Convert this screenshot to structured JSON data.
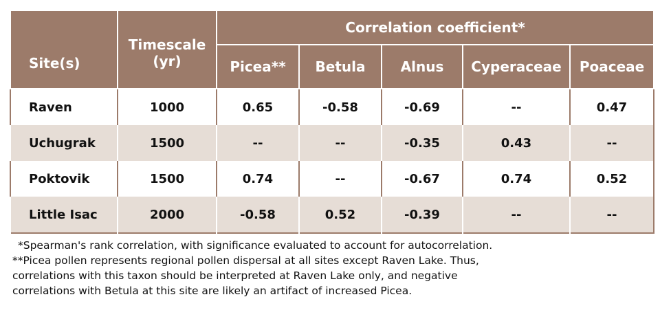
{
  "table": {
    "headers": {
      "site": "Site(s)",
      "timescale": "Timescale (yr)",
      "group": "Correlation coefficient*",
      "taxa": [
        "Picea**",
        "Betula",
        "Alnus",
        "Cyperaceae",
        "Poaceae"
      ]
    },
    "rows": [
      {
        "site": "Raven",
        "timescale": "1000",
        "values": [
          "0.65",
          "-0.58",
          "-0.69",
          "--",
          "0.47"
        ]
      },
      {
        "site": "Uchugrak",
        "timescale": "1500",
        "values": [
          "--",
          "--",
          "-0.35",
          "0.43",
          "--"
        ]
      },
      {
        "site": "Poktovik",
        "timescale": "1500",
        "values": [
          "0.74",
          "--",
          "-0.67",
          "0.74",
          "0.52"
        ]
      },
      {
        "site": "Little Isac",
        "timescale": "2000",
        "values": [
          "-0.58",
          "0.52",
          "-0.39",
          "--",
          "--"
        ]
      }
    ]
  },
  "notes": [
    "*Spearman's rank correlation, with significance evaluated to account for autocorrelation.",
    "**Picea pollen represents regional pollen dispersal at all sites except Raven Lake. Thus,",
    "correlations with this taxon should be interpreted at Raven Lake only, and negative",
    "correlations with Betula at this site are likely an artifact of increased Picea."
  ],
  "colors": {
    "header": "#9c7b6a",
    "stripe": "#e6ddd6"
  }
}
